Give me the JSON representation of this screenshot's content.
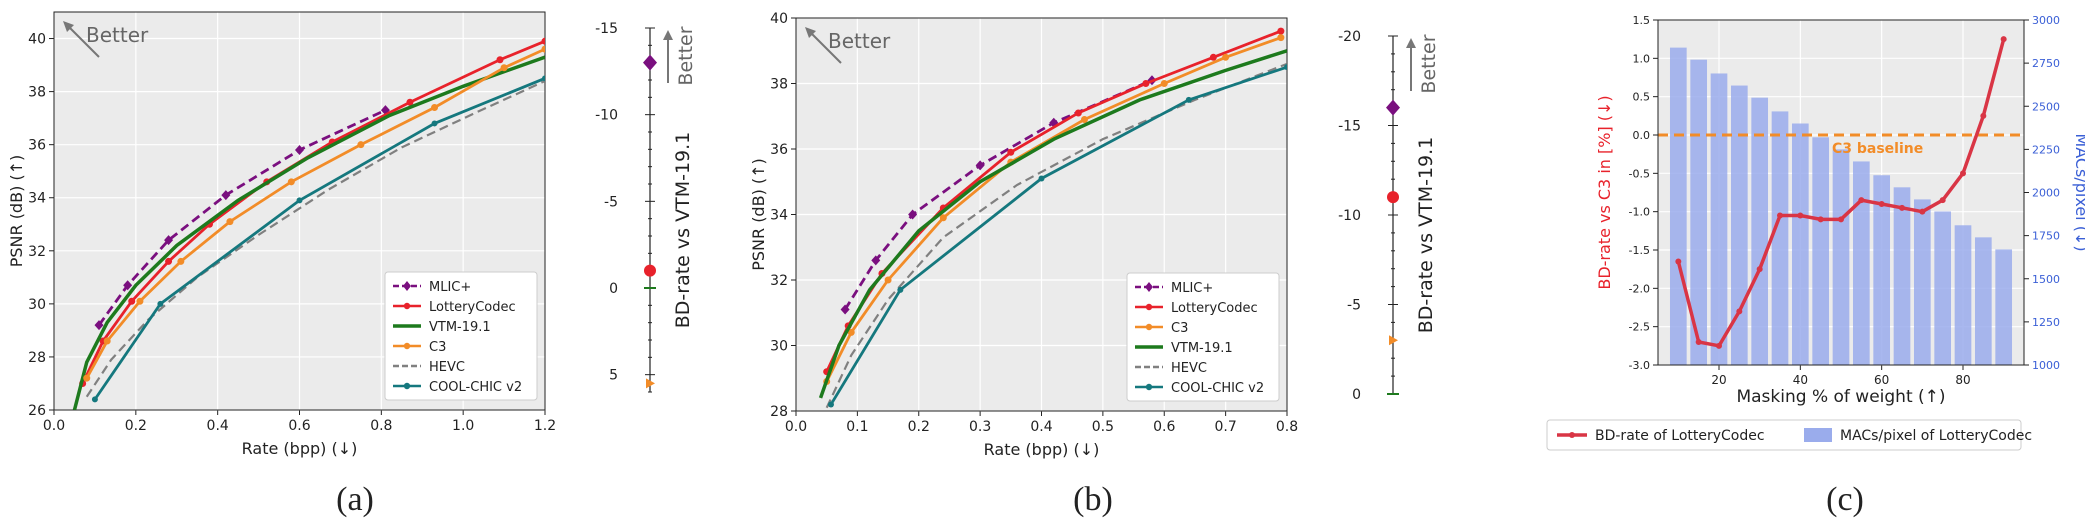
{
  "panels": [
    {
      "caption": "(a)"
    },
    {
      "caption": "(b)"
    },
    {
      "caption": "(c)"
    }
  ],
  "colors": {
    "MLIC+": "#7a0f7f",
    "LotteryCodec": "#e8222b",
    "C3": "#f28c28",
    "VTM-19.1": "#1d7a1d",
    "HEVC": "#808080",
    "COOL-CHIC v2": "#15787e",
    "bar": "#9aacec",
    "baseline": "#f28c28",
    "right_axis": "#3a5fd6"
  },
  "chart_data": [
    {
      "type": "line",
      "title": "",
      "xlabel": "Rate (bpp) (↓)",
      "ylabel": "PSNR (dB) (↑)",
      "xlim": [
        0.0,
        1.2
      ],
      "ylim": [
        26,
        41
      ],
      "xticks": [
        "0.0",
        "0.2",
        "0.4",
        "0.6",
        "0.8",
        "1.0",
        "1.2"
      ],
      "yticks": [
        "26",
        "28",
        "30",
        "32",
        "34",
        "36",
        "38",
        "40"
      ],
      "annotation": "Better",
      "legend_position": "lower-right",
      "series": [
        {
          "name": "MLIC+",
          "style": "dashed-diamond",
          "x": [
            0.11,
            0.18,
            0.28,
            0.42,
            0.6,
            0.81
          ],
          "y": [
            29.2,
            30.7,
            32.4,
            34.1,
            35.8,
            37.3
          ]
        },
        {
          "name": "LotteryCodec",
          "style": "solid-dot",
          "x": [
            0.07,
            0.12,
            0.19,
            0.28,
            0.38,
            0.52,
            0.68,
            0.87,
            1.09,
            1.2
          ],
          "y": [
            27.0,
            28.6,
            30.1,
            31.6,
            33.0,
            34.6,
            36.1,
            37.6,
            39.2,
            39.9
          ]
        },
        {
          "name": "VTM-19.1",
          "style": "solid-thick",
          "x": [
            0.05,
            0.08,
            0.13,
            0.2,
            0.3,
            0.45,
            0.62,
            0.82,
            1.0,
            1.2
          ],
          "y": [
            26.0,
            27.8,
            29.3,
            30.7,
            32.2,
            33.9,
            35.5,
            37.1,
            38.2,
            39.3
          ]
        },
        {
          "name": "C3",
          "style": "solid-dot",
          "x": [
            0.08,
            0.13,
            0.21,
            0.31,
            0.43,
            0.58,
            0.75,
            0.93,
            1.1,
            1.2
          ],
          "y": [
            27.2,
            28.6,
            30.1,
            31.6,
            33.1,
            34.6,
            36.0,
            37.4,
            38.9,
            39.6
          ]
        },
        {
          "name": "HEVC",
          "style": "dashed",
          "x": [
            0.08,
            0.14,
            0.23,
            0.35,
            0.5,
            0.67,
            0.85,
            1.03,
            1.2
          ],
          "y": [
            26.5,
            27.9,
            29.4,
            31.0,
            32.6,
            34.3,
            35.9,
            37.2,
            38.4
          ]
        },
        {
          "name": "COOL-CHIC v2",
          "style": "solid-small-dot",
          "x": [
            0.1,
            0.26,
            0.6,
            0.93,
            1.2
          ],
          "y": [
            26.4,
            30.0,
            33.9,
            36.8,
            38.5
          ]
        }
      ],
      "bdrate": {
        "ylabel": "BD-rate vs VTM-19.1",
        "annotation": "Better",
        "range": [
          -15,
          6
        ],
        "ticks": [
          "-15",
          "-10",
          "-5",
          "0",
          "5"
        ],
        "points": [
          {
            "name": "MLIC+",
            "value": -13
          },
          {
            "name": "LotteryCodec",
            "value": -1
          },
          {
            "name": "C3",
            "value": 5.5
          }
        ]
      }
    },
    {
      "type": "line",
      "title": "",
      "xlabel": "Rate (bpp) (↓)",
      "ylabel": "PSNR (dB) (↑)",
      "xlim": [
        0.0,
        0.8
      ],
      "ylim": [
        28,
        40
      ],
      "xticks": [
        "0.0",
        "0.1",
        "0.2",
        "0.3",
        "0.4",
        "0.5",
        "0.6",
        "0.7",
        "0.8"
      ],
      "yticks": [
        "28",
        "30",
        "32",
        "34",
        "36",
        "38",
        "40"
      ],
      "annotation": "Better",
      "legend_position": "lower-right",
      "series": [
        {
          "name": "MLIC+",
          "style": "dashed-diamond",
          "x": [
            0.08,
            0.13,
            0.19,
            0.3,
            0.42,
            0.58
          ],
          "y": [
            31.1,
            32.6,
            34.0,
            35.5,
            36.8,
            38.1
          ]
        },
        {
          "name": "LotteryCodec",
          "style": "solid-dot",
          "x": [
            0.05,
            0.085,
            0.14,
            0.24,
            0.35,
            0.46,
            0.57,
            0.68,
            0.79
          ],
          "y": [
            29.2,
            30.6,
            32.2,
            34.2,
            35.9,
            37.1,
            38.0,
            38.8,
            39.6
          ]
        },
        {
          "name": "C3",
          "style": "solid-dot",
          "x": [
            0.05,
            0.09,
            0.15,
            0.24,
            0.35,
            0.47,
            0.6,
            0.7,
            0.79
          ],
          "y": [
            28.9,
            30.4,
            32.0,
            33.9,
            35.6,
            36.9,
            38.0,
            38.8,
            39.4
          ]
        },
        {
          "name": "VTM-19.1",
          "style": "solid-thick",
          "x": [
            0.04,
            0.07,
            0.12,
            0.2,
            0.3,
            0.42,
            0.56,
            0.7,
            0.8
          ],
          "y": [
            28.4,
            30.0,
            31.7,
            33.5,
            35.0,
            36.3,
            37.5,
            38.4,
            39.0
          ]
        },
        {
          "name": "HEVC",
          "style": "dashed",
          "x": [
            0.05,
            0.09,
            0.15,
            0.24,
            0.36,
            0.5,
            0.65,
            0.8
          ],
          "y": [
            28.1,
            29.7,
            31.4,
            33.3,
            34.9,
            36.3,
            37.5,
            38.6
          ]
        },
        {
          "name": "COOL-CHIC v2",
          "style": "solid-small-dot",
          "x": [
            0.057,
            0.17,
            0.4,
            0.64,
            0.8
          ],
          "y": [
            28.2,
            31.7,
            35.1,
            37.5,
            38.5
          ]
        }
      ],
      "bdrate": {
        "ylabel": "BD-rate vs VTM-19.1",
        "annotation": "Better",
        "range": [
          -20,
          0
        ],
        "ticks": [
          "-20",
          "-15",
          "-10",
          "-5",
          "0"
        ],
        "points": [
          {
            "name": "MLIC+",
            "value": -16
          },
          {
            "name": "LotteryCodec",
            "value": -11
          },
          {
            "name": "C3",
            "value": -3
          }
        ]
      }
    },
    {
      "type": "bar+line",
      "title": "",
      "xlabel": "Masking % of weight (↑)",
      "ylabel": "BD-rate vs C3 in [%] (↓)",
      "y2label": "MACs/pixel (↓)",
      "xlim": [
        5,
        95
      ],
      "ylim": [
        -3.0,
        1.5
      ],
      "y2lim": [
        1000,
        3000
      ],
      "xticks": [
        "20",
        "40",
        "60",
        "80"
      ],
      "yticks": [
        "-3.0",
        "-2.5",
        "-2.0",
        "-1.5",
        "-1.0",
        "-0.5",
        "0.0",
        "0.5",
        "1.0",
        "1.5"
      ],
      "y2ticks": [
        "1000",
        "1250",
        "1500",
        "1750",
        "2000",
        "2250",
        "2500",
        "2750",
        "3000"
      ],
      "baseline_label": "C3 baseline",
      "baseline_value": 0.0,
      "x": [
        10,
        15,
        20,
        25,
        30,
        35,
        40,
        45,
        50,
        55,
        60,
        65,
        70,
        75,
        80,
        85,
        90
      ],
      "series": [
        {
          "name": "BD-rate of LotteryCodec",
          "axis": "left",
          "values": [
            -1.65,
            -2.7,
            -2.75,
            -2.3,
            -1.75,
            -1.05,
            -1.05,
            -1.1,
            -1.1,
            -0.85,
            -0.9,
            -0.95,
            -1.0,
            -0.85,
            -0.5,
            0.25,
            1.25
          ]
        },
        {
          "name": "MACs/pixel of LotteryCodec",
          "axis": "right",
          "values": [
            2840,
            2770,
            2690,
            2620,
            2550,
            2470,
            2400,
            2320,
            2250,
            2180,
            2100,
            2030,
            1960,
            1890,
            1810,
            1740,
            1670
          ]
        }
      ],
      "legend_position": "bottom"
    }
  ]
}
